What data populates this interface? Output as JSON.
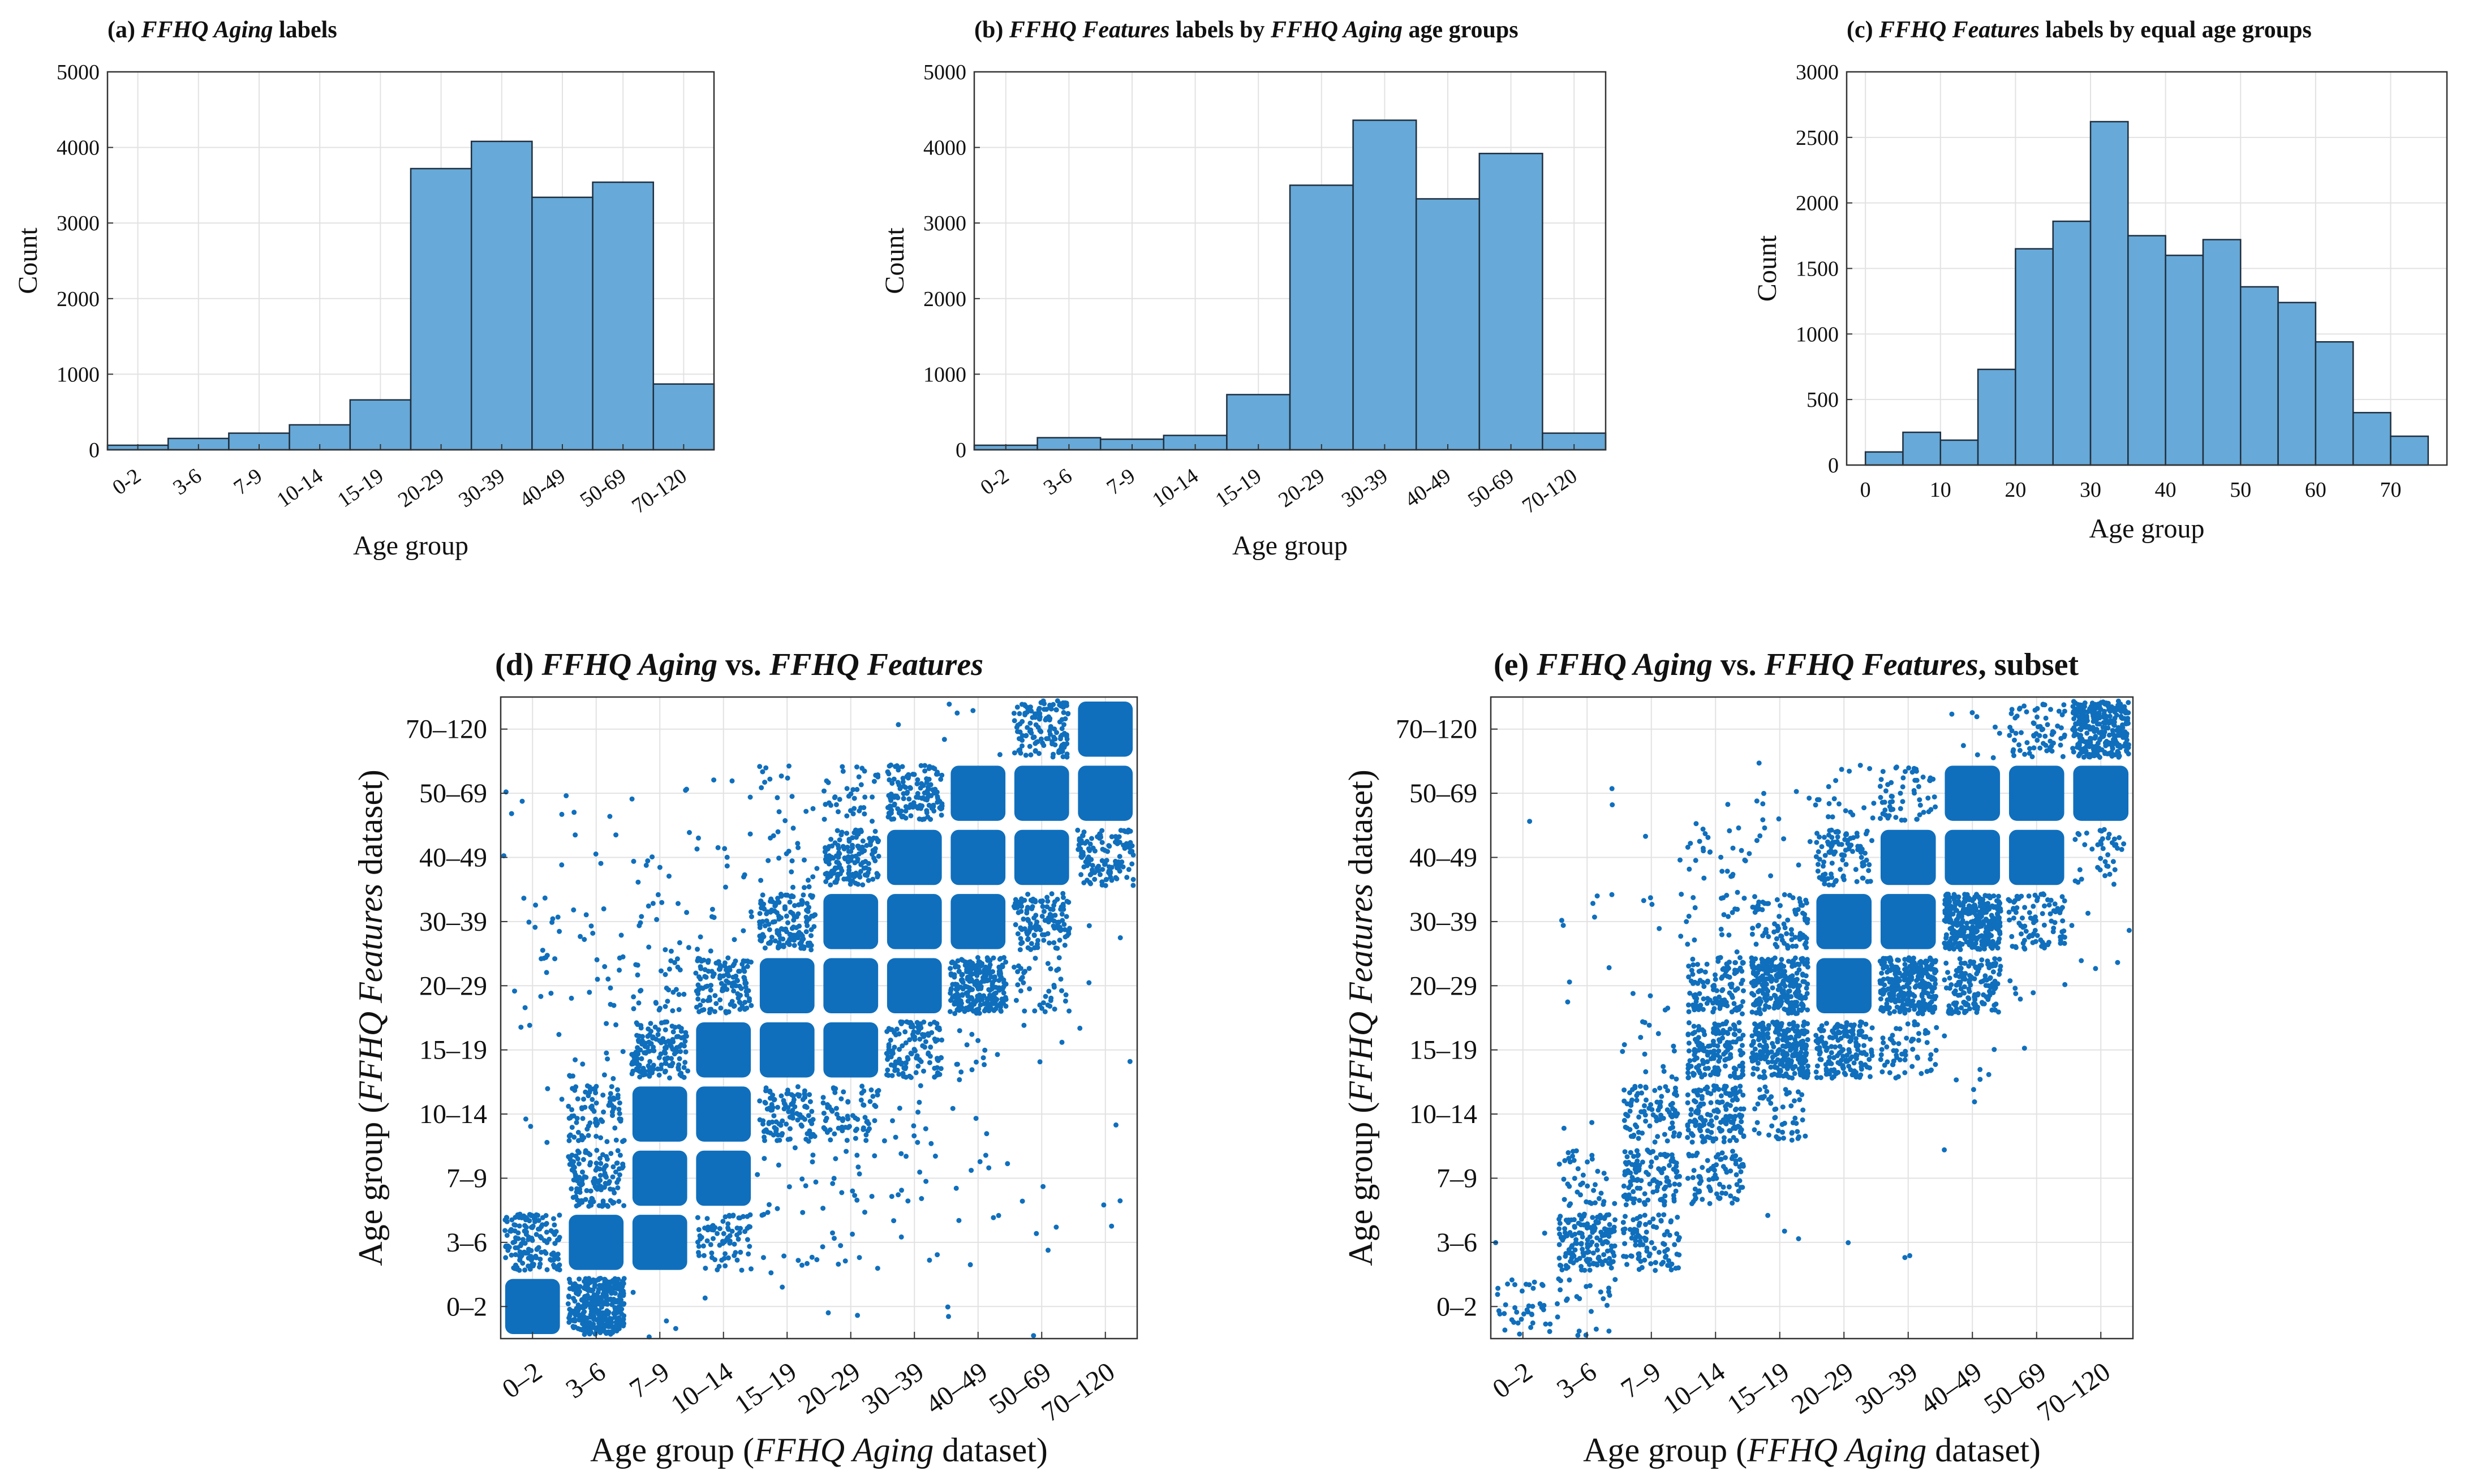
{
  "colors": {
    "bar_fill": "#67a9d8",
    "bar_edge": "#1f2f3f",
    "scatter": "#0f6fbd",
    "grid": "#e2e2e2"
  },
  "chart_data": [
    {
      "id": "a",
      "type": "bar",
      "title_parts": [
        {
          "text": "(a) ",
          "italic": false
        },
        {
          "text": "FFHQ Aging",
          "italic": true
        },
        {
          "text": " labels",
          "italic": false
        }
      ],
      "xlabel": "Age group",
      "ylabel": "Count",
      "categories": [
        "0-2",
        "3-6",
        "7-9",
        "10-14",
        "15-19",
        "20-29",
        "30-39",
        "40-49",
        "50-69",
        "70-120"
      ],
      "values": [
        60,
        150,
        220,
        330,
        660,
        3720,
        4080,
        3340,
        3540,
        870
      ],
      "ylim": [
        0,
        5000
      ],
      "yticks": [
        "0",
        "1000",
        "2000",
        "3000",
        "4000",
        "5000"
      ]
    },
    {
      "id": "b",
      "type": "bar",
      "title_parts": [
        {
          "text": "(b) ",
          "italic": false
        },
        {
          "text": "FFHQ Features",
          "italic": true
        },
        {
          "text": " labels by ",
          "italic": false
        },
        {
          "text": "FFHQ Aging",
          "italic": true
        },
        {
          "text": " age groups",
          "italic": false
        }
      ],
      "xlabel": "Age group",
      "ylabel": "Count",
      "categories": [
        "0-2",
        "3-6",
        "7-9",
        "10-14",
        "15-19",
        "20-29",
        "30-39",
        "40-49",
        "50-69",
        "70-120"
      ],
      "values": [
        60,
        160,
        140,
        190,
        730,
        3500,
        4360,
        3320,
        3920,
        220
      ],
      "ylim": [
        0,
        5000
      ],
      "yticks": [
        "0",
        "1000",
        "2000",
        "3000",
        "4000",
        "5000"
      ]
    },
    {
      "id": "c",
      "type": "bar",
      "title_parts": [
        {
          "text": "(c) ",
          "italic": false
        },
        {
          "text": "FFHQ Features",
          "italic": true
        },
        {
          "text": " labels by equal age groups",
          "italic": false
        }
      ],
      "xlabel": "Age group",
      "ylabel": "Count",
      "bin_edges": [
        0,
        5,
        10,
        15,
        20,
        25,
        30,
        35,
        40,
        45,
        50,
        55,
        60,
        65,
        70,
        75
      ],
      "values": [
        100,
        250,
        190,
        730,
        1650,
        1860,
        2620,
        1750,
        1600,
        1720,
        1360,
        1240,
        940,
        400,
        220
      ],
      "xlim": [
        -2.5,
        77.5
      ],
      "ylim": [
        0,
        3000
      ],
      "xticks": [
        "0",
        "10",
        "20",
        "30",
        "40",
        "50",
        "60",
        "70"
      ],
      "yticks": [
        "0",
        "500",
        "1000",
        "1500",
        "2000",
        "2500",
        "3000"
      ]
    },
    {
      "id": "d",
      "type": "scatter",
      "title_parts": [
        {
          "text": "(d) ",
          "italic": false
        },
        {
          "text": "FFHQ Aging",
          "italic": true
        },
        {
          "text": " vs. ",
          "italic": false
        },
        {
          "text": "FFHQ Features",
          "italic": true
        }
      ],
      "xlabel_parts": [
        {
          "text": "Age group (",
          "italic": false
        },
        {
          "text": "FFHQ Aging",
          "italic": true
        },
        {
          "text": " dataset)",
          "italic": false
        }
      ],
      "ylabel_parts": [
        {
          "text": "Age group (",
          "italic": false
        },
        {
          "text": "FFHQ Features",
          "italic": true
        },
        {
          "text": " dataset)",
          "italic": false
        }
      ],
      "categories": [
        "0–2",
        "3–6",
        "7–9",
        "10–14",
        "15–19",
        "20–29",
        "30–39",
        "40–49",
        "50–69",
        "70–120"
      ],
      "density": [
        [
          400,
          350,
          4,
          1,
          1,
          2,
          0,
          2,
          1,
          0
        ],
        [
          150,
          400,
          400,
          80,
          12,
          10,
          4,
          4,
          3,
          1
        ],
        [
          0,
          130,
          400,
          400,
          12,
          14,
          10,
          6,
          2,
          2
        ],
        [
          5,
          90,
          400,
          400,
          110,
          70,
          12,
          3,
          0,
          1
        ],
        [
          3,
          12,
          150,
          400,
          400,
          400,
          130,
          14,
          3,
          2
        ],
        [
          10,
          12,
          30,
          130,
          400,
          400,
          400,
          250,
          40,
          1
        ],
        [
          10,
          8,
          15,
          10,
          150,
          400,
          400,
          400,
          130,
          2
        ],
        [
          2,
          4,
          8,
          10,
          20,
          150,
          400,
          400,
          400,
          130
        ],
        [
          4,
          3,
          3,
          3,
          15,
          40,
          140,
          400,
          400,
          400
        ],
        [
          0,
          0,
          0,
          0,
          0,
          0,
          2,
          4,
          140,
          400
        ]
      ]
    },
    {
      "id": "e",
      "type": "scatter",
      "title_parts": [
        {
          "text": "(e) ",
          "italic": false
        },
        {
          "text": "FFHQ Aging",
          "italic": true
        },
        {
          "text": " vs. ",
          "italic": false
        },
        {
          "text": "FFHQ Features",
          "italic": true
        },
        {
          "text": ", subset",
          "italic": false
        }
      ],
      "xlabel_parts": [
        {
          "text": "Age group (",
          "italic": false
        },
        {
          "text": "FFHQ Aging",
          "italic": true
        },
        {
          "text": " dataset)",
          "italic": false
        }
      ],
      "ylabel_parts": [
        {
          "text": "Age group (",
          "italic": false
        },
        {
          "text": "FFHQ Features",
          "italic": true
        },
        {
          "text": " dataset)",
          "italic": false
        }
      ],
      "categories": [
        "0–2",
        "3–6",
        "7–9",
        "10–14",
        "15–19",
        "20–29",
        "30–39",
        "40–49",
        "50–69",
        "70–120"
      ],
      "density": [
        [
          40,
          25,
          0,
          0,
          0,
          0,
          0,
          0,
          0,
          0
        ],
        [
          2,
          160,
          90,
          0,
          3,
          1,
          2,
          0,
          0,
          0
        ],
        [
          0,
          40,
          120,
          80,
          0,
          0,
          0,
          1,
          0,
          0
        ],
        [
          0,
          2,
          90,
          150,
          50,
          0,
          0,
          2,
          0,
          0
        ],
        [
          0,
          0,
          15,
          160,
          250,
          160,
          60,
          6,
          1,
          0
        ],
        [
          0,
          3,
          4,
          120,
          250,
          400,
          300,
          150,
          6,
          3
        ],
        [
          0,
          6,
          6,
          20,
          80,
          400,
          400,
          320,
          90,
          3
        ],
        [
          0,
          0,
          2,
          25,
          8,
          100,
          400,
          400,
          400,
          40
        ],
        [
          1,
          2,
          0,
          2,
          8,
          20,
          60,
          400,
          400,
          400
        ],
        [
          0,
          0,
          0,
          0,
          0,
          0,
          0,
          8,
          70,
          300
        ]
      ]
    }
  ]
}
